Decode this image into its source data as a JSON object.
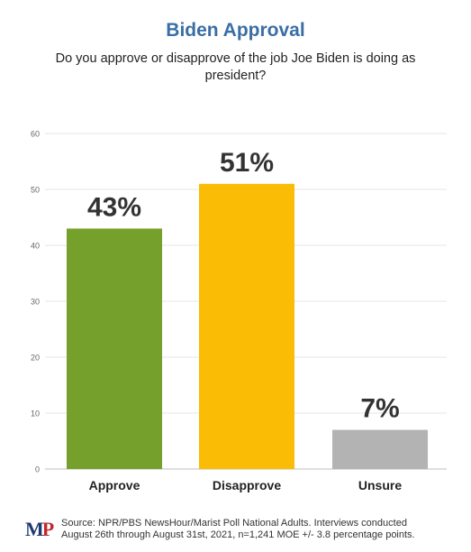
{
  "colors": {
    "title": "#3a6ea5",
    "approve": "#76a02c",
    "disapprove": "#fbbc05",
    "unsure": "#b3b3b3",
    "grid": "#e4e4e4",
    "logo_m": "#1f3a70",
    "logo_p": "#c0272d"
  },
  "chart_data": {
    "type": "bar",
    "title": "Biden Approval",
    "subtitle": "Do you approve or disapprove of the job Joe Biden is doing as president?",
    "categories": [
      "Approve",
      "Disapprove",
      "Unsure"
    ],
    "values": [
      43,
      51,
      7
    ],
    "data_labels": [
      "43%",
      "51%",
      "7%"
    ],
    "bar_colors": [
      "#76a02c",
      "#fbbc05",
      "#b3b3b3"
    ],
    "ylim": [
      0,
      60
    ],
    "yticks": [
      0,
      10,
      20,
      30,
      40,
      50,
      60
    ],
    "grid": true,
    "legend": "none"
  },
  "footer": {
    "logo_m": "M",
    "logo_p": "P",
    "source_line1": "Source: NPR/PBS NewsHour/Marist Poll National Adults. Interviews conducted",
    "source_line2": "August 26th through August 31st, 2021, n=1,241 MOE +/- 3.8 percentage points."
  }
}
